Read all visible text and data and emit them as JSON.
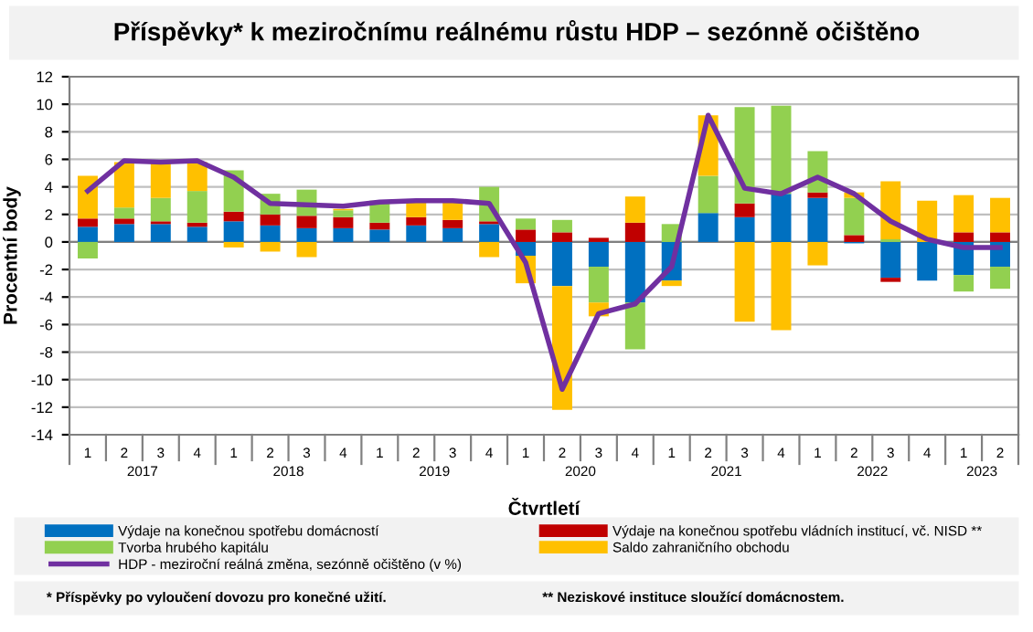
{
  "chart_data": {
    "type": "bar",
    "stacked": true,
    "title": "Příspěvky* k meziročnímu reálnému růstu HDP – sezónně očištěno",
    "xlabel": "Čtvrtletí",
    "ylabel": "Procentní body",
    "categories": [
      "1",
      "2",
      "3",
      "4",
      "1",
      "2",
      "3",
      "4",
      "1",
      "2",
      "3",
      "4",
      "1",
      "2",
      "3",
      "4",
      "1",
      "2",
      "3",
      "4",
      "1",
      "2",
      "3",
      "4",
      "1",
      "2"
    ],
    "series": [
      {
        "name": "Výdaje na konečnou spotřebu domácností",
        "color": "#0070c0",
        "values": [
          1.1,
          1.3,
          1.3,
          1.1,
          1.5,
          1.2,
          1.0,
          1.0,
          0.9,
          1.2,
          1.0,
          1.3,
          -1.0,
          -3.2,
          -1.8,
          -4.4,
          -2.8,
          2.1,
          1.8,
          3.5,
          3.2,
          -0.1,
          -2.6,
          -2.8,
          -2.4,
          -1.8
        ]
      },
      {
        "name": "Výdaje na konečnou spotřebu vládních institucí, vč. NISD **",
        "color": "#c00000",
        "values": [
          0.6,
          0.4,
          0.2,
          0.3,
          0.7,
          0.8,
          0.9,
          0.8,
          0.5,
          0.6,
          0.6,
          0.2,
          0.9,
          0.7,
          0.3,
          1.4,
          0.0,
          0.0,
          1.0,
          0.0,
          0.4,
          0.5,
          -0.3,
          0.0,
          0.7,
          0.7
        ]
      },
      {
        "name": "Tvorba hrubého kapitálu",
        "color": "#92d050",
        "values": [
          -1.2,
          0.8,
          1.7,
          2.3,
          3.0,
          1.5,
          1.9,
          0.5,
          1.6,
          0.0,
          0.0,
          2.5,
          0.8,
          0.9,
          -2.6,
          -3.4,
          1.3,
          2.7,
          7.0,
          6.4,
          3.0,
          2.7,
          0.2,
          0.0,
          -1.2,
          -1.6
        ]
      },
      {
        "name": "Saldo zahraničního obchodu",
        "color": "#ffc000",
        "values": [
          3.1,
          3.3,
          2.6,
          2.1,
          -0.4,
          -0.7,
          -1.1,
          0.1,
          0.0,
          1.3,
          1.5,
          -1.1,
          -2.0,
          -9.0,
          -1.0,
          1.9,
          -0.4,
          4.4,
          -5.8,
          -6.4,
          -1.7,
          0.4,
          4.2,
          3.0,
          2.7,
          2.5
        ]
      },
      {
        "name": "HDP - meziroční reálná změna, sezónně očištěno (v %)",
        "type": "line",
        "color": "#7030a0",
        "values": [
          3.7,
          5.9,
          5.8,
          5.9,
          4.7,
          2.8,
          2.7,
          2.6,
          2.9,
          3.0,
          3.0,
          2.8,
          -1.5,
          -10.7,
          -5.2,
          -4.5,
          -1.8,
          9.2,
          3.9,
          3.5,
          4.7,
          3.5,
          1.5,
          0.2,
          -0.4,
          -0.4
        ]
      }
    ],
    "ylim": [
      -14,
      12
    ],
    "yticks": [
      -14,
      -12,
      -10,
      -8,
      -6,
      -4,
      -2,
      0,
      2,
      4,
      6,
      8,
      10,
      12
    ],
    "grid": "y",
    "legend": "bottom",
    "annotations": [
      "2017",
      "2018",
      "2019",
      "2020",
      "2021",
      "2022",
      "2023",
      "* Příspěvky po vyloučení dovozu pro konečné užití.",
      "** Neziskové instituce sloužící domácnostem."
    ]
  }
}
